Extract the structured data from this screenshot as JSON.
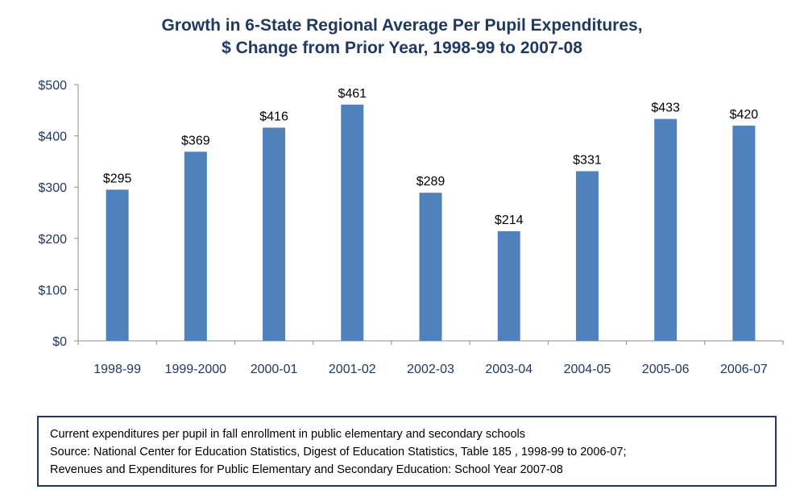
{
  "chart_data": {
    "type": "bar",
    "title": "Growth in 6-State Regional Average Per Pupil Expenditures,",
    "subtitle": "$ Change from Prior Year,  1998-99 to 2007-08",
    "categories": [
      "1998-99",
      "1999-2000",
      "2000-01",
      "2001-02",
      "2002-03",
      "2003-04",
      "2004-05",
      "2005-06",
      "2006-07"
    ],
    "values": [
      295,
      369,
      416,
      461,
      289,
      214,
      331,
      433,
      420
    ],
    "data_labels": [
      "$295",
      "$369",
      "$416",
      "$461",
      "$289",
      "$214",
      "$331",
      "$433",
      "$420"
    ],
    "xlabel": "",
    "ylabel": "",
    "ylim": [
      0,
      500
    ],
    "yticks": [
      0,
      100,
      200,
      300,
      400,
      500
    ],
    "ytick_labels": [
      "$0",
      "$100",
      "$200",
      "$300",
      "$400",
      "$500"
    ],
    "grid": false,
    "legend": "none",
    "bar_color": "#4F81BD"
  },
  "colors": {
    "title": "#1F3864",
    "axis_text": "#1F3864",
    "data_label": "#000000",
    "axis_line": "#8C8C8C"
  },
  "note": {
    "line1": "Current expenditures per pupil in fall enrollment in public elementary and secondary schools",
    "line2": "Source:  National Center for Education Statistics, Digest of Education Statistics, Table 185 , 1998-99 to 2006-07;",
    "line3": "Revenues and Expenditures for Public Elementary and Secondary Education: School Year 2007-08"
  }
}
